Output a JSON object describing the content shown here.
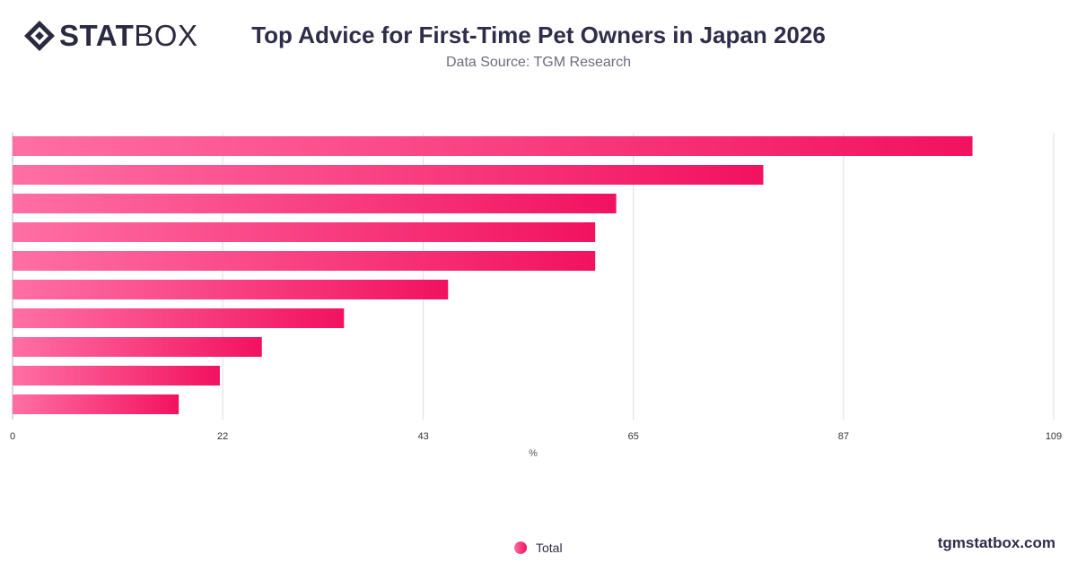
{
  "header": {
    "logo_bold": "STAT",
    "logo_light": "BOX",
    "title": "Top Advice for First-Time Pet Owners in Japan 2026",
    "subtitle": "Data Source: TGM Research"
  },
  "footer": {
    "brand": "tgmstatbox.com"
  },
  "colors": {
    "bar_start": "#ff6fa4",
    "bar_end": "#f2125f",
    "grid": "#dddddd",
    "text": "#2f2d4a"
  },
  "chart_data": {
    "type": "bar",
    "orientation": "horizontal",
    "title": "Top Advice for First-Time Pet Owners in Japan 2026",
    "subtitle": "Data Source: TGM Research",
    "xlabel": "%",
    "ylabel": "",
    "xlim": [
      0,
      109
    ],
    "x_ticks": [
      0,
      22,
      43,
      65,
      87,
      109
    ],
    "category_labels_visible": false,
    "series": [
      {
        "name": "Total",
        "values": [
          100.5,
          78.6,
          63.2,
          61.0,
          61.0,
          45.6,
          34.7,
          26.1,
          21.7,
          17.4
        ]
      }
    ],
    "legend": {
      "position": "bottom-center",
      "entries": [
        "Total"
      ]
    },
    "grid": true
  }
}
